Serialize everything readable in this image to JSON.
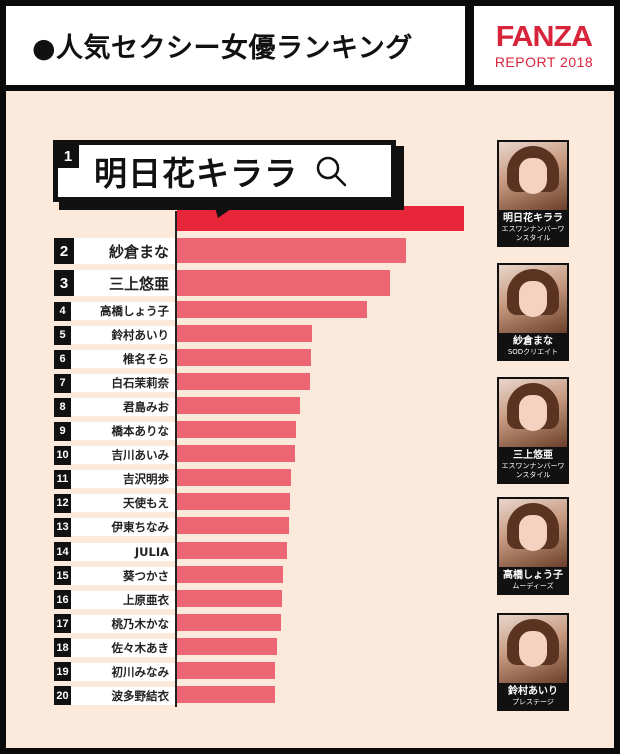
{
  "header": {
    "title": "●人気セクシー女優ランキング",
    "brand": "FANZA",
    "subtitle": "REPORT 2018",
    "brand_color": "#d8243a"
  },
  "colors": {
    "background": "#fbe9dc",
    "bar_top": "#e8263a",
    "bar": "#ec6673",
    "frame": "#0a0a0a"
  },
  "callout": {
    "rank": "1",
    "name": "明日花キララ",
    "icon": "search-icon"
  },
  "chart_data": {
    "type": "bar",
    "orientation": "horizontal",
    "title": "人気セクシー女優ランキング",
    "xlabel": "",
    "ylabel": "",
    "grid": false,
    "legend": "none",
    "value_units": "relative bar length (px from axis), no numeric scale shown",
    "categories": [
      "明日花キララ",
      "紗倉まな",
      "三上悠亜",
      "高橋しょう子",
      "鈴村あいり",
      "椎名そら",
      "白石茉莉奈",
      "君島みお",
      "橋本ありな",
      "吉川あいみ",
      "吉沢明歩",
      "天使もえ",
      "伊東ちなみ",
      "JULIA",
      "葵つかさ",
      "上原亜衣",
      "桃乃木かな",
      "佐々木あき",
      "初川みなみ",
      "波多野結衣"
    ],
    "ranks": [
      1,
      2,
      3,
      4,
      5,
      6,
      7,
      8,
      9,
      10,
      11,
      12,
      13,
      14,
      15,
      16,
      17,
      18,
      19,
      20
    ],
    "values": [
      287,
      229,
      213,
      190,
      135,
      134,
      133,
      123,
      119,
      118,
      114,
      113,
      112,
      110,
      106,
      105,
      104,
      100,
      98,
      98
    ]
  },
  "ranking": [
    {
      "rank": "1",
      "name": "明日花キララ"
    },
    {
      "rank": "2",
      "name": "紗倉まな"
    },
    {
      "rank": "3",
      "name": "三上悠亜"
    },
    {
      "rank": "4",
      "name": "高橋しょう子"
    },
    {
      "rank": "5",
      "name": "鈴村あいり"
    },
    {
      "rank": "6",
      "name": "椎名そら"
    },
    {
      "rank": "7",
      "name": "白石茉莉奈"
    },
    {
      "rank": "8",
      "name": "君島みお"
    },
    {
      "rank": "9",
      "name": "橋本ありな"
    },
    {
      "rank": "10",
      "name": "吉川あいみ"
    },
    {
      "rank": "11",
      "name": "吉沢明歩"
    },
    {
      "rank": "12",
      "name": "天使もえ"
    },
    {
      "rank": "13",
      "name": "伊東ちなみ"
    },
    {
      "rank": "14",
      "name": "JULIA"
    },
    {
      "rank": "15",
      "name": "葵つかさ"
    },
    {
      "rank": "16",
      "name": "上原亜衣"
    },
    {
      "rank": "17",
      "name": "桃乃木かな"
    },
    {
      "rank": "18",
      "name": "佐々木あき"
    },
    {
      "rank": "19",
      "name": "初川みなみ"
    },
    {
      "rank": "20",
      "name": "波多野結衣"
    }
  ],
  "cards": [
    {
      "name": "明日花キララ",
      "label": "エスワンナンバーワンスタイル"
    },
    {
      "name": "紗倉まな",
      "label": "SODクリエイト"
    },
    {
      "name": "三上悠亜",
      "label": "エスワンナンバーワンスタイル"
    },
    {
      "name": "高橋しょう子",
      "label": "ムーディーズ"
    },
    {
      "name": "鈴村あいり",
      "label": "プレステージ"
    }
  ]
}
